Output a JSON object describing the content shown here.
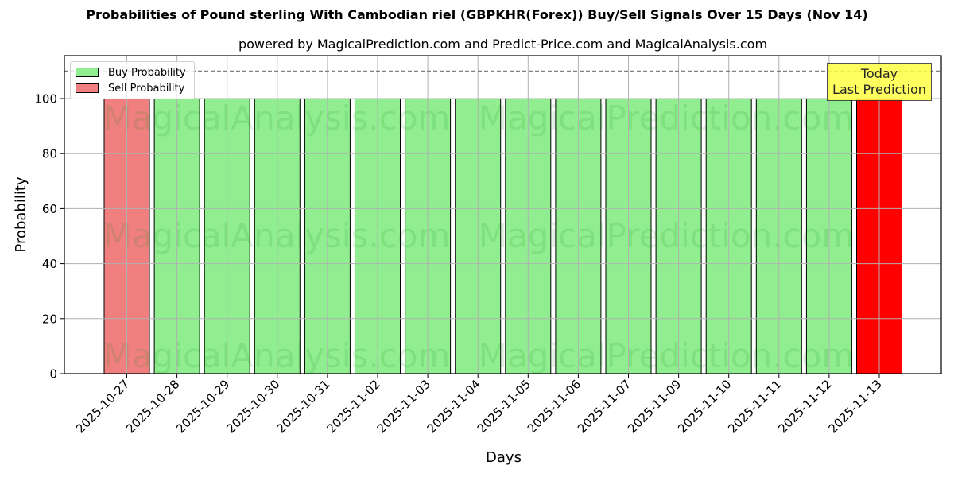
{
  "chart_data": {
    "type": "bar",
    "title": "Probabilities of Pound sterling With Cambodian riel (GBPKHR(Forex)) Buy/Sell Signals Over 15 Days (Nov 14)",
    "subtitle": "powered by MagicalPrediction.com and Predict-Price.com and MagicalAnalysis.com",
    "xlabel": "Days",
    "ylabel": "Probability",
    "ylim": [
      0,
      115
    ],
    "yticks": [
      0,
      20,
      40,
      60,
      80,
      100
    ],
    "grid": true,
    "legend_position": "upper left",
    "reference_line": {
      "y": 110,
      "style": "dashed",
      "color": "#808080"
    },
    "categories": [
      "2025-10-27",
      "2025-10-28",
      "2025-10-29",
      "2025-10-30",
      "2025-10-31",
      "2025-11-02",
      "2025-11-03",
      "2025-11-04",
      "2025-11-05",
      "2025-11-06",
      "2025-11-07",
      "2025-11-09",
      "2025-11-10",
      "2025-11-11",
      "2025-11-12",
      "2025-11-13"
    ],
    "series": [
      {
        "name": "Buy Probability",
        "color": "#90ee90",
        "values": [
          0,
          100,
          100,
          100,
          100,
          100,
          100,
          100,
          100,
          100,
          100,
          100,
          100,
          100,
          100,
          0
        ]
      },
      {
        "name": "Sell Probability",
        "color": "#f08080",
        "values": [
          100,
          0,
          0,
          0,
          0,
          0,
          0,
          0,
          0,
          0,
          0,
          0,
          0,
          0,
          0,
          100
        ]
      }
    ],
    "bar_colors": [
      "#f08080",
      "#90ee90",
      "#90ee90",
      "#90ee90",
      "#90ee90",
      "#90ee90",
      "#90ee90",
      "#90ee90",
      "#90ee90",
      "#90ee90",
      "#90ee90",
      "#90ee90",
      "#90ee90",
      "#90ee90",
      "#90ee90",
      "#ff0000"
    ],
    "bar_values": [
      100,
      100,
      100,
      100,
      100,
      100,
      100,
      100,
      100,
      100,
      100,
      100,
      100,
      100,
      100,
      100
    ],
    "annotation": {
      "line1": "Today",
      "line2": "Last Prediction",
      "color": "#ffff44"
    },
    "watermarks": [
      "MagicalAnalysis.com",
      "MagicalPrediction.com"
    ]
  },
  "legend": {
    "buy_label": "Buy Probability",
    "sell_label": "Sell Probability",
    "buy_color": "#90ee90",
    "sell_color": "#f08080"
  }
}
